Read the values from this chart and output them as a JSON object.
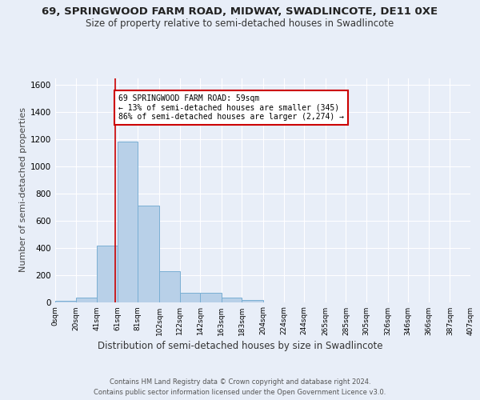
{
  "title1": "69, SPRINGWOOD FARM ROAD, MIDWAY, SWADLINCOTE, DE11 0XE",
  "title2": "Size of property relative to semi-detached houses in Swadlincote",
  "xlabel": "Distribution of semi-detached houses by size in Swadlincote",
  "ylabel": "Number of semi-detached properties",
  "footnote1": "Contains HM Land Registry data © Crown copyright and database right 2024.",
  "footnote2": "Contains public sector information licensed under the Open Government Licence v3.0.",
  "bin_edges": [
    0,
    20,
    41,
    61,
    81,
    102,
    122,
    142,
    163,
    183,
    204,
    224,
    244,
    265,
    285,
    305,
    326,
    346,
    366,
    387,
    407
  ],
  "bar_heights": [
    10,
    30,
    415,
    1180,
    710,
    225,
    65,
    65,
    30,
    15,
    0,
    0,
    0,
    0,
    0,
    0,
    0,
    0,
    0,
    0
  ],
  "bar_color": "#b8d0e8",
  "bar_edge_color": "#7aafd4",
  "vline_x": 59,
  "vline_color": "#cc0000",
  "annotation_text": "69 SPRINGWOOD FARM ROAD: 59sqm\n← 13% of semi-detached houses are smaller (345)\n86% of semi-detached houses are larger (2,274) →",
  "annotation_box_color": "#ffffff",
  "annotation_box_edge": "#cc0000",
  "ylim": [
    0,
    1650
  ],
  "yticks": [
    0,
    200,
    400,
    600,
    800,
    1000,
    1200,
    1400,
    1600
  ],
  "bg_color": "#e8eef8",
  "plot_bg_color": "#e8eef8",
  "grid_color": "#ffffff",
  "title1_fontsize": 9.5,
  "title2_fontsize": 8.5,
  "xlabel_fontsize": 8.5,
  "ylabel_fontsize": 8
}
